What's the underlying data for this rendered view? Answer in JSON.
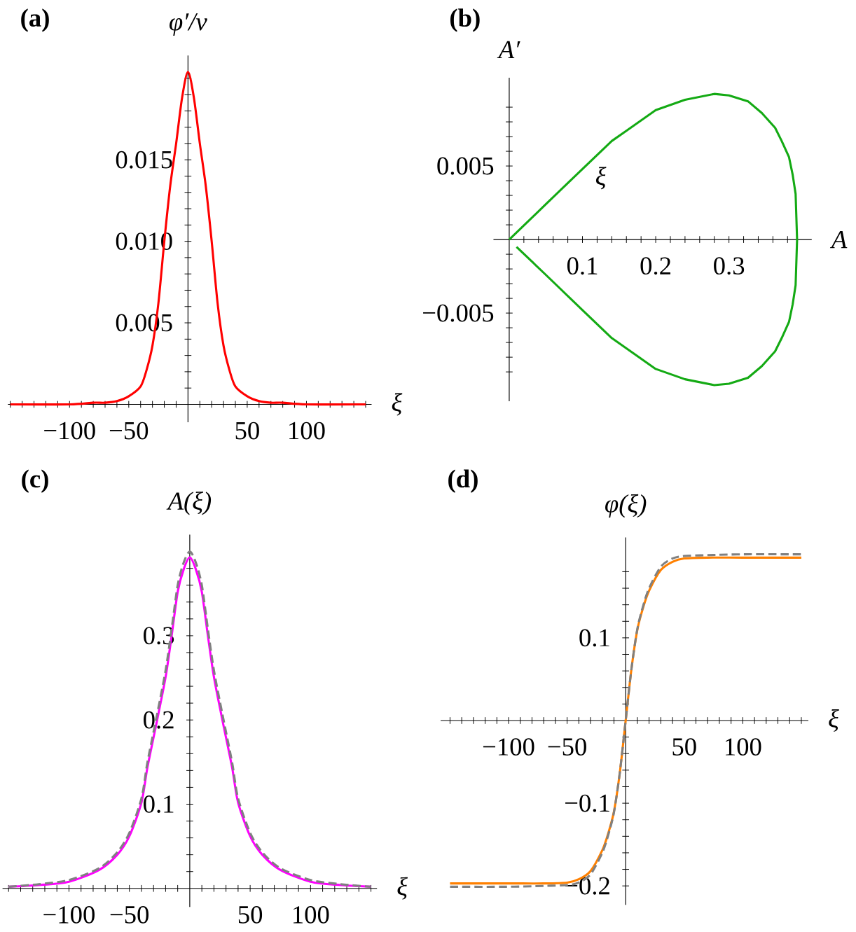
{
  "chart_data": [
    {
      "type": "line",
      "title": "(a)",
      "xlabel": "ξ",
      "ylabel": "φ′/v",
      "xlim": [
        -152,
        155
      ],
      "ylim": [
        -0.0011,
        0.0214
      ],
      "xticks": [
        {
          "value": -150,
          "label": null
        },
        {
          "value": -140,
          "label": null
        },
        {
          "value": -130,
          "label": null
        },
        {
          "value": -120,
          "label": null
        },
        {
          "value": -110,
          "label": null
        },
        {
          "value": -100,
          "label": "−100"
        },
        {
          "value": -90,
          "label": null
        },
        {
          "value": -80,
          "label": null
        },
        {
          "value": -70,
          "label": null
        },
        {
          "value": -60,
          "label": null
        },
        {
          "value": -50,
          "label": "−50"
        },
        {
          "value": -40,
          "label": null
        },
        {
          "value": -30,
          "label": null
        },
        {
          "value": -20,
          "label": null
        },
        {
          "value": -10,
          "label": null
        },
        {
          "value": 10,
          "label": null
        },
        {
          "value": 20,
          "label": null
        },
        {
          "value": 30,
          "label": null
        },
        {
          "value": 40,
          "label": null
        },
        {
          "value": 50,
          "label": "50"
        },
        {
          "value": 60,
          "label": null
        },
        {
          "value": 70,
          "label": null
        },
        {
          "value": 80,
          "label": null
        },
        {
          "value": 90,
          "label": null
        },
        {
          "value": 100,
          "label": "100"
        },
        {
          "value": 110,
          "label": null
        },
        {
          "value": 120,
          "label": null
        },
        {
          "value": 130,
          "label": null
        },
        {
          "value": 140,
          "label": null
        },
        {
          "value": 150,
          "label": null
        }
      ],
      "yticks": [
        {
          "value": 0.001,
          "label": null
        },
        {
          "value": 0.002,
          "label": null
        },
        {
          "value": 0.003,
          "label": null
        },
        {
          "value": 0.004,
          "label": null
        },
        {
          "value": 0.005,
          "label": "0.005"
        },
        {
          "value": 0.006,
          "label": null
        },
        {
          "value": 0.007,
          "label": null
        },
        {
          "value": 0.008,
          "label": null
        },
        {
          "value": 0.009,
          "label": null
        },
        {
          "value": 0.01,
          "label": "0.010"
        },
        {
          "value": 0.011,
          "label": null
        },
        {
          "value": 0.012,
          "label": null
        },
        {
          "value": 0.013,
          "label": null
        },
        {
          "value": 0.014,
          "label": null
        },
        {
          "value": 0.015,
          "label": "0.015"
        },
        {
          "value": 0.016,
          "label": null
        },
        {
          "value": 0.017,
          "label": null
        },
        {
          "value": 0.018,
          "label": null
        },
        {
          "value": 0.019,
          "label": null
        },
        {
          "value": 0.02,
          "label": null
        }
      ],
      "series": [
        {
          "color": "#ff0000",
          "x": [
            -150,
            -100,
            -80,
            -70,
            -60,
            -50,
            -40,
            -35,
            -30,
            -25,
            -20,
            -15,
            -10,
            -5,
            0,
            5,
            10,
            15,
            20,
            25,
            30,
            35,
            40,
            50,
            60,
            70,
            80,
            100,
            150
          ],
          "values": [
            0,
            0,
            0.0001,
            0.0001,
            0.0002,
            0.0005,
            0.0011,
            0.0021,
            0.0036,
            0.0062,
            0.01,
            0.0134,
            0.016,
            0.0188,
            0.0204,
            0.0188,
            0.016,
            0.0134,
            0.01,
            0.0062,
            0.0036,
            0.0021,
            0.0011,
            0.0005,
            0.0002,
            0.0001,
            0.0001,
            0,
            0
          ]
        }
      ]
    },
    {
      "type": "line",
      "title": "(b)",
      "xlabel": "A",
      "ylabel": "A′",
      "xlim": [
        -0.0215,
        0.413
      ],
      "ylim": [
        -0.011,
        0.011
      ],
      "xticks": [
        {
          "value": 0.02,
          "label": null
        },
        {
          "value": 0.04,
          "label": null
        },
        {
          "value": 0.06,
          "label": null
        },
        {
          "value": 0.08,
          "label": null
        },
        {
          "value": 0.1,
          "label": "0.1"
        },
        {
          "value": 0.12,
          "label": null
        },
        {
          "value": 0.14,
          "label": null
        },
        {
          "value": 0.16,
          "label": null
        },
        {
          "value": 0.18,
          "label": null
        },
        {
          "value": 0.2,
          "label": "0.2"
        },
        {
          "value": 0.22,
          "label": null
        },
        {
          "value": 0.24,
          "label": null
        },
        {
          "value": 0.26,
          "label": null
        },
        {
          "value": 0.28,
          "label": null
        },
        {
          "value": 0.3,
          "label": "0.3"
        },
        {
          "value": 0.32,
          "label": null
        },
        {
          "value": 0.34,
          "label": null
        },
        {
          "value": 0.36,
          "label": null
        },
        {
          "value": 0.38,
          "label": null
        }
      ],
      "yticks": [
        {
          "value": -0.009,
          "label": null
        },
        {
          "value": -0.008,
          "label": null
        },
        {
          "value": -0.007,
          "label": null
        },
        {
          "value": -0.006,
          "label": null
        },
        {
          "value": -0.005,
          "label": "−0.005"
        },
        {
          "value": -0.004,
          "label": null
        },
        {
          "value": -0.003,
          "label": null
        },
        {
          "value": -0.002,
          "label": null
        },
        {
          "value": -0.001,
          "label": null
        },
        {
          "value": 0.001,
          "label": null
        },
        {
          "value": 0.002,
          "label": null
        },
        {
          "value": 0.003,
          "label": null
        },
        {
          "value": 0.004,
          "label": null
        },
        {
          "value": 0.005,
          "label": "0.005"
        },
        {
          "value": 0.006,
          "label": null
        },
        {
          "value": 0.007,
          "label": null
        },
        {
          "value": 0.008,
          "label": null
        },
        {
          "value": 0.009,
          "label": null
        }
      ],
      "annotations": [
        "ξ"
      ],
      "series": [
        {
          "color": "#14aa14",
          "x": [
            0,
            0.05,
            0.1,
            0.14,
            0.16,
            0.2,
            0.24,
            0.28,
            0.3,
            0.326,
            0.345,
            0.363,
            0.372,
            0.382,
            0.387,
            0.391,
            0.393,
            0.391,
            0.387,
            0.382,
            0.372,
            0.363,
            0.345,
            0.326,
            0.3,
            0.28,
            0.24,
            0.2,
            0.16,
            0.14,
            0.1,
            0.05,
            0.01
          ],
          "values": [
            0,
            0.0024,
            0.0048,
            0.0067,
            0.0074,
            0.0088,
            0.0095,
            0.0099,
            0.0098,
            0.0094,
            0.0086,
            0.0076,
            0.0067,
            0.0056,
            0.0044,
            0.0031,
            0,
            -0.0031,
            -0.0044,
            -0.0056,
            -0.0067,
            -0.0076,
            -0.0086,
            -0.0094,
            -0.0098,
            -0.0099,
            -0.0095,
            -0.0088,
            -0.0074,
            -0.0067,
            -0.0048,
            -0.0024,
            -0.0005
          ]
        }
      ]
    },
    {
      "type": "line",
      "title": "(c)",
      "xlabel": "ξ",
      "ylabel": "A(ξ)",
      "xlim": [
        -155,
        155
      ],
      "ylim": [
        -0.022,
        0.42
      ],
      "xticks": [
        {
          "value": -150,
          "label": null
        },
        {
          "value": -140,
          "label": null
        },
        {
          "value": -130,
          "label": null
        },
        {
          "value": -120,
          "label": null
        },
        {
          "value": -110,
          "label": null
        },
        {
          "value": -100,
          "label": "−100"
        },
        {
          "value": -90,
          "label": null
        },
        {
          "value": -80,
          "label": null
        },
        {
          "value": -70,
          "label": null
        },
        {
          "value": -60,
          "label": null
        },
        {
          "value": -50,
          "label": "−50"
        },
        {
          "value": -40,
          "label": null
        },
        {
          "value": -30,
          "label": null
        },
        {
          "value": -20,
          "label": null
        },
        {
          "value": -10,
          "label": null
        },
        {
          "value": 10,
          "label": null
        },
        {
          "value": 20,
          "label": null
        },
        {
          "value": 30,
          "label": null
        },
        {
          "value": 40,
          "label": null
        },
        {
          "value": 50,
          "label": "50"
        },
        {
          "value": 60,
          "label": null
        },
        {
          "value": 70,
          "label": null
        },
        {
          "value": 80,
          "label": null
        },
        {
          "value": 90,
          "label": null
        },
        {
          "value": 100,
          "label": "100"
        },
        {
          "value": 110,
          "label": null
        },
        {
          "value": 120,
          "label": null
        },
        {
          "value": 130,
          "label": null
        },
        {
          "value": 140,
          "label": null
        },
        {
          "value": 150,
          "label": null
        }
      ],
      "yticks": [
        {
          "value": 0.02,
          "label": null
        },
        {
          "value": 0.04,
          "label": null
        },
        {
          "value": 0.06,
          "label": null
        },
        {
          "value": 0.08,
          "label": null
        },
        {
          "value": 0.1,
          "label": "0.1"
        },
        {
          "value": 0.12,
          "label": null
        },
        {
          "value": 0.14,
          "label": null
        },
        {
          "value": 0.16,
          "label": null
        },
        {
          "value": 0.18,
          "label": null
        },
        {
          "value": 0.2,
          "label": "0.2"
        },
        {
          "value": 0.22,
          "label": null
        },
        {
          "value": 0.24,
          "label": null
        },
        {
          "value": 0.26,
          "label": null
        },
        {
          "value": 0.28,
          "label": null
        },
        {
          "value": 0.3,
          "label": "0.3"
        },
        {
          "value": 0.32,
          "label": null
        },
        {
          "value": 0.34,
          "label": null
        },
        {
          "value": 0.36,
          "label": null
        },
        {
          "value": 0.38,
          "label": null
        }
      ],
      "series": [
        {
          "color": "#ff00ff",
          "line_style": "solid",
          "x": [
            -150,
            -125,
            -100,
            -75,
            -60,
            -50,
            -40,
            -35,
            -27,
            -20,
            -15,
            -10,
            -5,
            0,
            5,
            10,
            15,
            20,
            27,
            35,
            40,
            50,
            60,
            75,
            100,
            125,
            150
          ],
          "values": [
            0.002,
            0.004,
            0.008,
            0.022,
            0.04,
            0.062,
            0.102,
            0.144,
            0.2,
            0.251,
            0.3,
            0.352,
            0.379,
            0.393,
            0.379,
            0.352,
            0.3,
            0.251,
            0.2,
            0.144,
            0.102,
            0.062,
            0.04,
            0.022,
            0.008,
            0.004,
            0.002
          ]
        },
        {
          "color": "#808080",
          "line_style": "dashed",
          "x": [
            -150,
            -125,
            -100,
            -75,
            -60,
            -50,
            -40,
            -35,
            -27,
            -20,
            -15,
            -10,
            -5,
            0,
            5,
            10,
            15,
            20,
            27,
            35,
            40,
            50,
            60,
            75,
            100,
            125,
            150
          ],
          "values": [
            0.002,
            0.005,
            0.01,
            0.024,
            0.043,
            0.066,
            0.107,
            0.15,
            0.207,
            0.259,
            0.308,
            0.36,
            0.387,
            0.4,
            0.387,
            0.36,
            0.308,
            0.259,
            0.207,
            0.15,
            0.107,
            0.066,
            0.043,
            0.024,
            0.01,
            0.005,
            0.002
          ]
        }
      ]
    },
    {
      "type": "line",
      "title": "(d)",
      "xlabel": "ξ",
      "ylabel": "φ(ξ)",
      "xlim": [
        -158,
        156
      ],
      "ylim": [
        -0.223,
        0.2215
      ],
      "xticks": [
        {
          "value": -150,
          "label": null
        },
        {
          "value": -140,
          "label": null
        },
        {
          "value": -130,
          "label": null
        },
        {
          "value": -120,
          "label": null
        },
        {
          "value": -110,
          "label": null
        },
        {
          "value": -100,
          "label": "−100"
        },
        {
          "value": -90,
          "label": null
        },
        {
          "value": -80,
          "label": null
        },
        {
          "value": -70,
          "label": null
        },
        {
          "value": -60,
          "label": null
        },
        {
          "value": -50,
          "label": "−50"
        },
        {
          "value": -40,
          "label": null
        },
        {
          "value": -30,
          "label": null
        },
        {
          "value": -20,
          "label": null
        },
        {
          "value": -10,
          "label": null
        },
        {
          "value": 10,
          "label": null
        },
        {
          "value": 20,
          "label": null
        },
        {
          "value": 30,
          "label": null
        },
        {
          "value": 40,
          "label": null
        },
        {
          "value": 50,
          "label": "50"
        },
        {
          "value": 60,
          "label": null
        },
        {
          "value": 70,
          "label": null
        },
        {
          "value": 80,
          "label": null
        },
        {
          "value": 90,
          "label": null
        },
        {
          "value": 100,
          "label": "100"
        },
        {
          "value": 110,
          "label": null
        },
        {
          "value": 120,
          "label": null
        },
        {
          "value": 130,
          "label": null
        },
        {
          "value": 140,
          "label": null
        },
        {
          "value": 150,
          "label": null
        }
      ],
      "yticks": [
        {
          "value": -0.2,
          "label": "−0.2"
        },
        {
          "value": -0.18,
          "label": null
        },
        {
          "value": -0.16,
          "label": null
        },
        {
          "value": -0.14,
          "label": null
        },
        {
          "value": -0.12,
          "label": null
        },
        {
          "value": -0.1,
          "label": "−0.1"
        },
        {
          "value": -0.08,
          "label": null
        },
        {
          "value": -0.06,
          "label": null
        },
        {
          "value": -0.04,
          "label": null
        },
        {
          "value": -0.02,
          "label": null
        },
        {
          "value": 0.02,
          "label": null
        },
        {
          "value": 0.04,
          "label": null
        },
        {
          "value": 0.06,
          "label": null
        },
        {
          "value": 0.08,
          "label": null
        },
        {
          "value": 0.1,
          "label": "0.1"
        },
        {
          "value": 0.12,
          "label": null
        },
        {
          "value": 0.14,
          "label": null
        },
        {
          "value": 0.16,
          "label": null
        },
        {
          "value": 0.18,
          "label": null
        }
      ],
      "series": [
        {
          "color": "#ff8000",
          "line_style": "solid",
          "x": [
            -150,
            -100,
            -70,
            -50,
            -40,
            -30,
            -20,
            -15,
            -10,
            -5,
            0,
            5,
            10,
            15,
            20,
            30,
            40,
            50,
            70,
            100,
            150
          ],
          "values": [
            -0.197,
            -0.197,
            -0.197,
            -0.196,
            -0.192,
            -0.182,
            -0.157,
            -0.137,
            -0.11,
            -0.063,
            0,
            0.063,
            0.11,
            0.137,
            0.157,
            0.182,
            0.192,
            0.196,
            0.197,
            0.197,
            0.197
          ]
        },
        {
          "color": "#808080",
          "line_style": "dashed",
          "x": [
            -150,
            -100,
            -70,
            -50,
            -40,
            -30,
            -20,
            -15,
            -10,
            -5,
            0,
            5,
            10,
            15,
            20,
            30,
            40,
            50,
            70,
            100,
            150
          ],
          "values": [
            -0.201,
            -0.201,
            -0.2,
            -0.199,
            -0.196,
            -0.186,
            -0.16,
            -0.139,
            -0.111,
            -0.063,
            0,
            0.063,
            0.111,
            0.139,
            0.16,
            0.186,
            0.196,
            0.199,
            0.2,
            0.201,
            0.201
          ]
        }
      ]
    }
  ]
}
